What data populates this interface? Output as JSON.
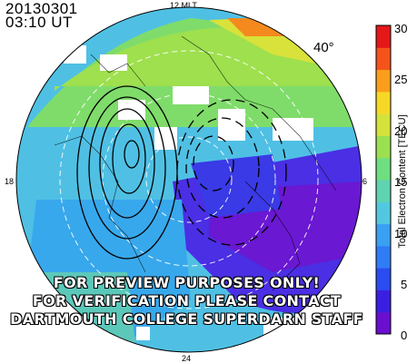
{
  "header": {
    "date": "20130301",
    "time": "03:10 UT"
  },
  "mlt_labels": {
    "top": "12 MLT",
    "left": "18",
    "right": "06",
    "bottom": "24"
  },
  "latitude_label": "40°",
  "colorbar": {
    "title": "Total Electron Content [TECU]",
    "ticks": [
      "30",
      "25",
      "20",
      "15",
      "10",
      "5",
      "0"
    ],
    "min": 0,
    "max": 30,
    "colors": [
      "#6a0fd0",
      "#3b1fe0",
      "#2a4cf0",
      "#2f7cf5",
      "#3aa0f2",
      "#52c8e0",
      "#5fd4b0",
      "#6ede80",
      "#9be050",
      "#d4e23c",
      "#f6d826",
      "#fa9e1c",
      "#f4541a",
      "#e41818"
    ]
  },
  "watermark": [
    "FOR PREVIEW PURPOSES ONLY!",
    "FOR VERIFICATION PLEASE CONTACT",
    "DARTMOUTH COLLEGE SUPERDARN STAFF"
  ]
}
